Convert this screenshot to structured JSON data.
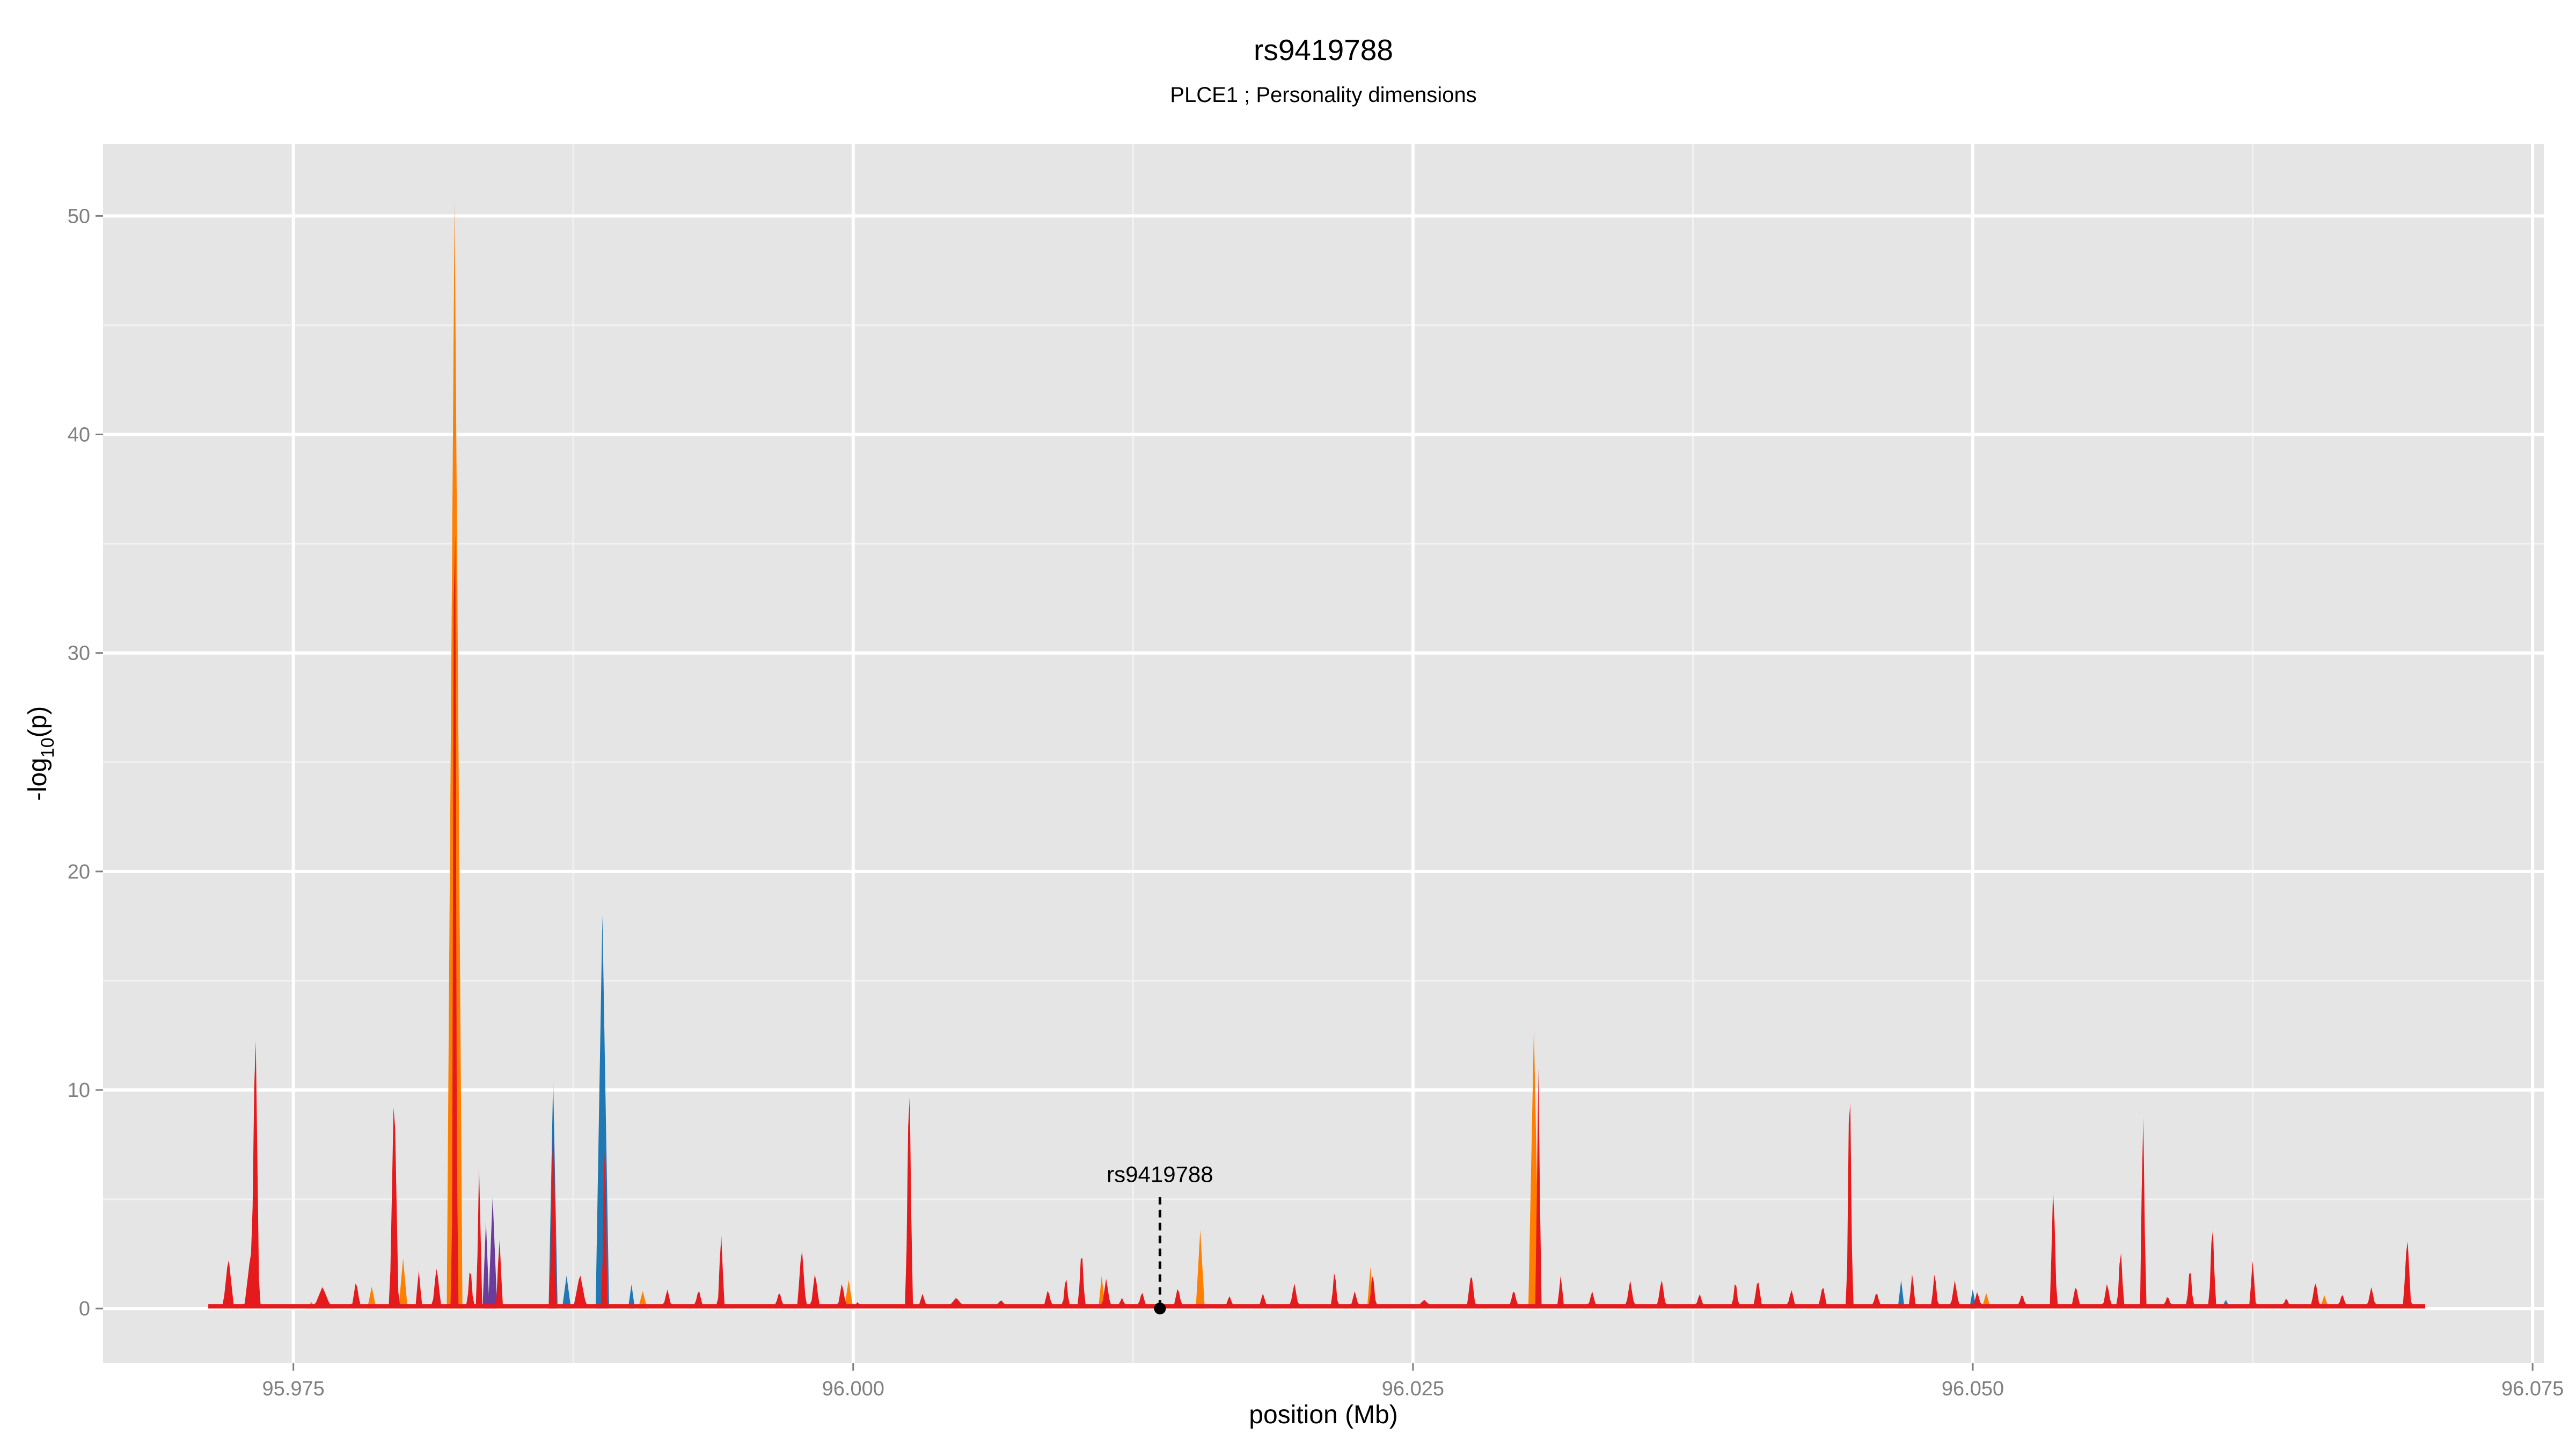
{
  "chart_data": {
    "type": "area",
    "title": "rs9419788",
    "subtitle": "PLCE1 ; Personality dimensions",
    "xlabel": "position (Mb)",
    "ylabel_main": "-log",
    "ylabel_sub": "10",
    "ylabel_tail": "(p)",
    "xlim": [
      95.9665,
      96.0755
    ],
    "ylim": [
      -2.5,
      53.3
    ],
    "x_ticks": [
      95.975,
      96.0,
      96.025,
      96.05,
      96.075
    ],
    "x_tick_labels": [
      "95.975",
      "96.000",
      "96.025",
      "96.050",
      "96.075"
    ],
    "y_ticks": [
      0,
      10,
      20,
      30,
      40,
      50
    ],
    "y_tick_labels": [
      "0",
      "10",
      "20",
      "30",
      "40",
      "50"
    ],
    "grid": true,
    "background": "#e5e5e5",
    "colors": {
      "red": "#e41a1c",
      "orange": "#ff7f00",
      "blue": "#1f78b4",
      "purple": "#6a3d9a"
    },
    "series": [
      {
        "color": "orange",
        "peaks": [
          [
            95.9822,
            50.8,
            0.00035
          ],
          [
            95.9799,
            2.3,
            0.0002
          ],
          [
            95.9785,
            1.0,
            0.0002
          ],
          [
            96.0304,
            12.8,
            0.00025
          ],
          [
            96.0155,
            3.6,
            0.0002
          ],
          [
            96.0231,
            1.9,
            0.00015
          ],
          [
            95.9998,
            1.3,
            0.0002
          ],
          [
            96.0111,
            1.5,
            0.00015
          ],
          [
            96.0506,
            0.7,
            0.0002
          ],
          [
            96.0657,
            0.6,
            0.0002
          ],
          [
            95.9906,
            0.8,
            0.0002
          ],
          [
            95.9758,
            0.3,
            0.0002
          ]
        ]
      },
      {
        "color": "blue",
        "peaks": [
          [
            95.9888,
            18.0,
            0.0003
          ],
          [
            95.9866,
            10.5,
            0.0002
          ],
          [
            95.9901,
            1.1,
            0.00015
          ],
          [
            96.05,
            0.9,
            0.00015
          ],
          [
            96.0468,
            1.3,
            0.00015
          ],
          [
            95.9872,
            1.5,
            0.0002
          ],
          [
            96.0613,
            0.4,
            0.0002
          ]
        ]
      },
      {
        "color": "purple",
        "peaks": [
          [
            95.9839,
            5.1,
            0.0002
          ],
          [
            95.9866,
            9.0,
            0.00015
          ],
          [
            95.9836,
            4.0,
            0.00015
          ]
        ]
      },
      {
        "color": "red",
        "baseline": 0.2,
        "range": [
          95.9712,
          96.0702
        ],
        "peaks": [
          [
            95.9733,
            13.9,
            0.00018
          ],
          [
            95.9721,
            2.4,
            0.00025
          ],
          [
            95.9731,
            2.6,
            0.0003
          ],
          [
            95.9763,
            1.0,
            0.0004
          ],
          [
            95.9778,
            1.3,
            0.0002
          ],
          [
            95.9795,
            10.6,
            0.0002
          ],
          [
            95.9806,
            1.8,
            0.00015
          ],
          [
            95.9814,
            2.0,
            0.0002
          ],
          [
            95.9822,
            48.0,
            0.00012
          ],
          [
            95.9829,
            2.1,
            0.00015
          ],
          [
            95.9833,
            7.0,
            0.00012
          ],
          [
            95.9842,
            3.4,
            0.00015
          ],
          [
            95.9866,
            9.5,
            0.00015
          ],
          [
            95.9878,
            1.6,
            0.0003
          ],
          [
            95.9889,
            9.0,
            0.00012
          ],
          [
            95.9917,
            0.9,
            0.0002
          ],
          [
            95.9931,
            0.9,
            0.0002
          ],
          [
            95.9941,
            3.6,
            0.00015
          ],
          [
            95.9967,
            0.8,
            0.0002
          ],
          [
            95.9977,
            2.9,
            0.0002
          ],
          [
            95.9983,
            1.7,
            0.0002
          ],
          [
            95.9995,
            1.2,
            0.0002
          ],
          [
            96.0002,
            0.3,
            0.0002
          ],
          [
            96.0025,
            11.8,
            0.00015
          ],
          [
            96.0031,
            0.7,
            0.0002
          ],
          [
            96.0046,
            0.5,
            0.0004
          ],
          [
            96.0066,
            0.4,
            0.0003
          ],
          [
            96.0087,
            0.9,
            0.0002
          ],
          [
            96.0095,
            1.6,
            0.00015
          ],
          [
            96.0102,
            3.0,
            0.00015
          ],
          [
            96.0113,
            1.4,
            0.0002
          ],
          [
            96.012,
            0.5,
            0.0002
          ],
          [
            96.0129,
            0.8,
            0.0002
          ],
          [
            96.0145,
            1.0,
            0.0002
          ],
          [
            96.0168,
            0.6,
            0.0002
          ],
          [
            96.0183,
            0.7,
            0.0002
          ],
          [
            96.0197,
            1.2,
            0.0002
          ],
          [
            96.0215,
            1.9,
            0.00015
          ],
          [
            96.0224,
            0.8,
            0.0002
          ],
          [
            96.0232,
            1.8,
            0.00015
          ],
          [
            96.0255,
            0.4,
            0.0004
          ],
          [
            96.0276,
            1.7,
            0.0002
          ],
          [
            96.0295,
            0.9,
            0.0002
          ],
          [
            96.0306,
            11.0,
            0.00013
          ],
          [
            96.0316,
            1.6,
            0.00015
          ],
          [
            96.033,
            0.8,
            0.0002
          ],
          [
            96.0347,
            1.3,
            0.0002
          ],
          [
            96.0361,
            1.4,
            0.0002
          ],
          [
            96.0378,
            0.7,
            0.0002
          ],
          [
            96.0394,
            1.4,
            0.00015
          ],
          [
            96.0404,
            1.4,
            0.0002
          ],
          [
            96.0419,
            0.9,
            0.0002
          ],
          [
            96.0433,
            1.1,
            0.0002
          ],
          [
            96.0445,
            12.3,
            0.00013
          ],
          [
            96.0457,
            0.8,
            0.0002
          ],
          [
            96.0473,
            1.7,
            0.00015
          ],
          [
            96.0483,
            1.8,
            0.00015
          ],
          [
            96.0492,
            1.3,
            0.0002
          ],
          [
            96.0502,
            0.8,
            0.0002
          ],
          [
            96.0522,
            0.7,
            0.0002
          ],
          [
            96.0536,
            6.1,
            0.00015
          ],
          [
            96.0546,
            1.1,
            0.0002
          ],
          [
            96.056,
            1.2,
            0.0002
          ],
          [
            96.0566,
            3.0,
            0.00015
          ],
          [
            96.0576,
            9.7,
            0.00013
          ],
          [
            96.0587,
            0.6,
            0.0002
          ],
          [
            96.0597,
            2.1,
            0.00015
          ],
          [
            96.0607,
            4.3,
            0.00015
          ],
          [
            96.0625,
            2.3,
            0.00015
          ],
          [
            96.064,
            0.5,
            0.0002
          ],
          [
            96.0653,
            1.3,
            0.0002
          ],
          [
            96.0665,
            0.7,
            0.0002
          ],
          [
            96.0678,
            1.0,
            0.0002
          ],
          [
            96.0694,
            3.5,
            0.00018
          ]
        ]
      }
    ],
    "annotations": [
      {
        "label": "rs9419788",
        "x": 96.0137,
        "y": 0.0,
        "line_top": 5.1
      }
    ]
  }
}
